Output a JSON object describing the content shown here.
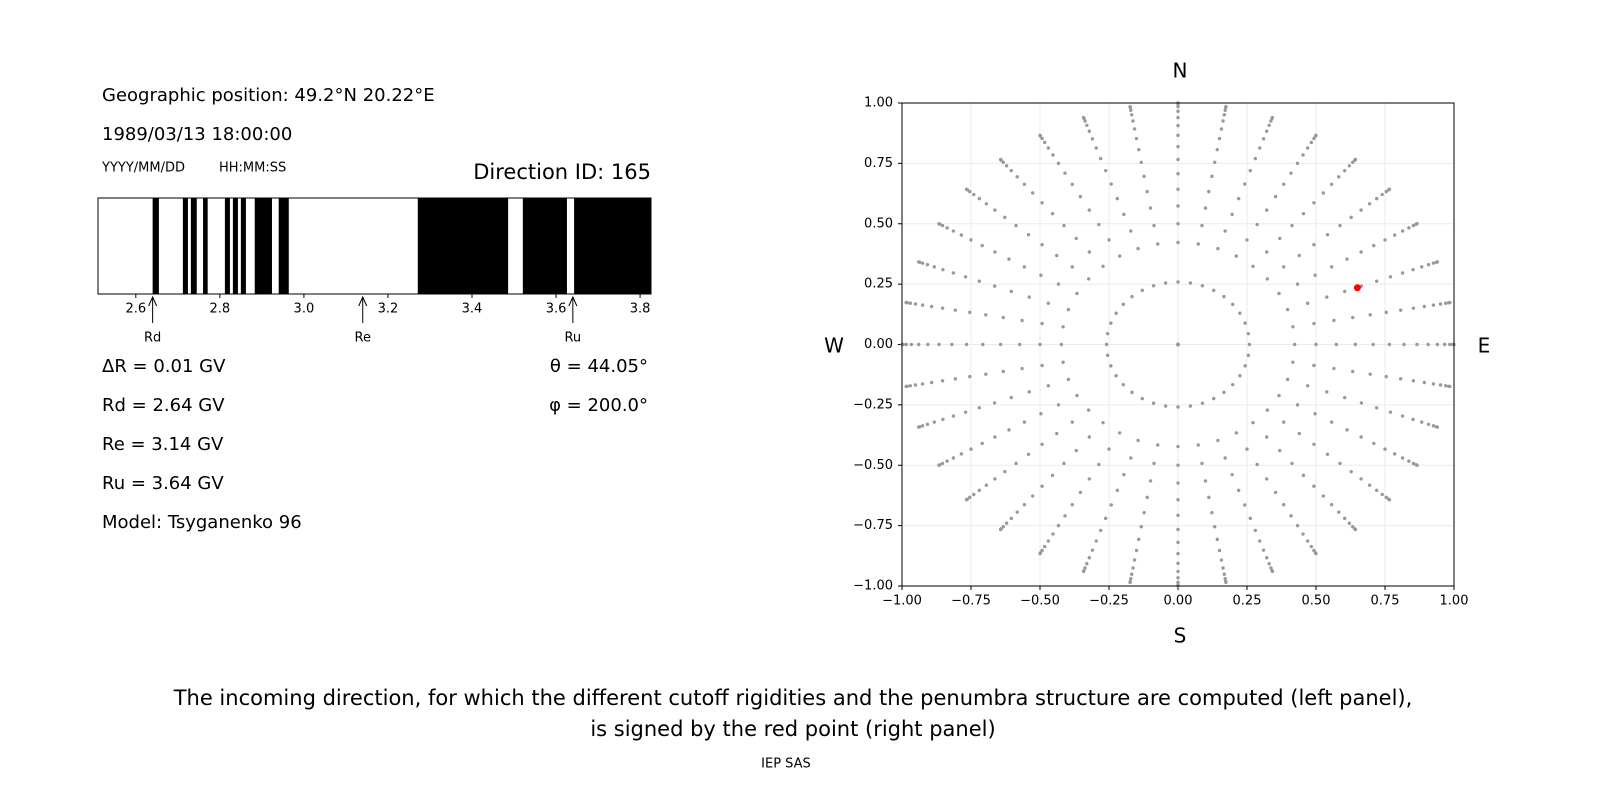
{
  "info": {
    "position": "Geographic position: 49.2°N 20.22°E",
    "datetime": "1989/03/13 18:00:00",
    "date_format": "YYYY/MM/DD",
    "time_format": "HH:MM:SS",
    "direction_id": "Direction ID: 165",
    "delta_r": "ΔR = 0.01 GV",
    "rd": "Rd = 2.64 GV",
    "re": "Re = 3.14 GV",
    "ru": "Ru = 3.64 GV",
    "model": "Model: Tsyganenko 96",
    "theta": "θ = 44.05°",
    "phi": "φ = 200.0°"
  },
  "chart_data": [
    {
      "type": "penumbra",
      "xlim": [
        2.51,
        3.826
      ],
      "xticks": [
        {
          "value": 2.6,
          "label": "2.6"
        },
        {
          "value": 2.8,
          "label": "2.8"
        },
        {
          "value": 3.0,
          "label": "3.0"
        },
        {
          "value": 3.2,
          "label": "3.2"
        },
        {
          "value": 3.4,
          "label": "3.4"
        },
        {
          "value": 3.6,
          "label": "3.6"
        },
        {
          "value": 3.8,
          "label": "3.8"
        }
      ],
      "color": "#000000",
      "segments": [
        [
          2.64,
          2.655
        ],
        [
          2.712,
          2.724
        ],
        [
          2.731,
          2.745
        ],
        [
          2.76,
          2.771
        ],
        [
          2.812,
          2.824
        ],
        [
          2.831,
          2.843
        ],
        [
          2.85,
          2.862
        ],
        [
          2.883,
          2.924
        ],
        [
          2.94,
          2.964
        ],
        [
          3.271,
          3.486
        ],
        [
          3.521,
          3.626
        ],
        [
          3.643,
          3.826
        ]
      ],
      "markers": [
        {
          "label": "Rd",
          "value": 2.64
        },
        {
          "label": "Re",
          "value": 3.14
        },
        {
          "label": "Ru",
          "value": 3.64
        }
      ]
    },
    {
      "type": "scatter",
      "xlim": [
        -1,
        1
      ],
      "ylim": [
        -1,
        1
      ],
      "grid": true,
      "xticks": [
        {
          "value": -1,
          "label": "−1.00"
        },
        {
          "value": -0.75,
          "label": "−0.75"
        },
        {
          "value": -0.5,
          "label": "−0.50"
        },
        {
          "value": -0.25,
          "label": "−0.25"
        },
        {
          "value": 0,
          "label": "0.00"
        },
        {
          "value": 0.25,
          "label": "0.25"
        },
        {
          "value": 0.5,
          "label": "0.50"
        },
        {
          "value": 0.75,
          "label": "0.75"
        },
        {
          "value": 1,
          "label": "1.00"
        }
      ],
      "yticks": [
        {
          "value": -1,
          "label": "−1.00"
        },
        {
          "value": -0.75,
          "label": "−0.75"
        },
        {
          "value": -0.5,
          "label": "−0.50"
        },
        {
          "value": -0.25,
          "label": "−0.25"
        },
        {
          "value": 0,
          "label": "0.00"
        },
        {
          "value": 0.25,
          "label": "0.25"
        },
        {
          "value": 0.5,
          "label": "0.50"
        },
        {
          "value": 0.75,
          "label": "0.75"
        },
        {
          "value": 1,
          "label": "1.00"
        }
      ],
      "directions": {
        "color": "#999999",
        "zenith": [
          0,
          15,
          25,
          30,
          35,
          40,
          45,
          50,
          55,
          60,
          65,
          70,
          75,
          80,
          85,
          90
        ],
        "azimuth": [
          0,
          10,
          20,
          30,
          40,
          50,
          60,
          70,
          80,
          90,
          100,
          110,
          120,
          130,
          140,
          150,
          160,
          170,
          180,
          190,
          200,
          210,
          220,
          230,
          240,
          250,
          260,
          270,
          280,
          290,
          300,
          310,
          320,
          330,
          340,
          350
        ]
      },
      "highlight": {
        "x": 0.65,
        "y": 0.235,
        "color": "#ff0000"
      },
      "compass": {
        "north": "N",
        "south": "S",
        "west": "W",
        "east": "E"
      }
    }
  ],
  "caption": [
    "The incoming direction, for which the different cutoff rigidities and the penumbra structure are computed (left panel),",
    "is signed by the red point (right panel)"
  ],
  "footer": "IEP SAS"
}
